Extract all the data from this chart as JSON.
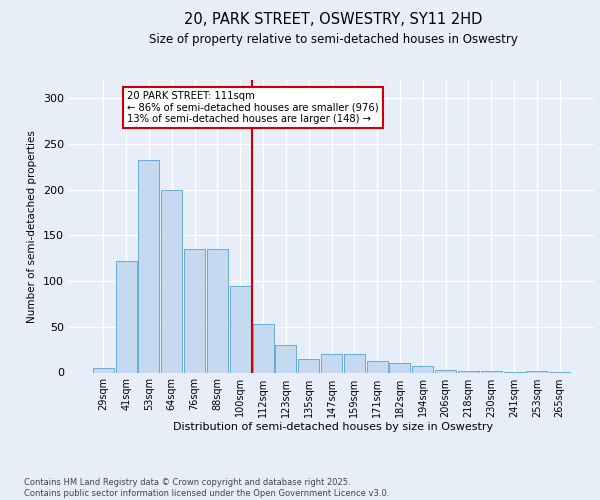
{
  "title1": "20, PARK STREET, OSWESTRY, SY11 2HD",
  "title2": "Size of property relative to semi-detached houses in Oswestry",
  "xlabel": "Distribution of semi-detached houses by size in Oswestry",
  "ylabel": "Number of semi-detached properties",
  "categories": [
    "29sqm",
    "41sqm",
    "53sqm",
    "64sqm",
    "76sqm",
    "88sqm",
    "100sqm",
    "112sqm",
    "123sqm",
    "135sqm",
    "147sqm",
    "159sqm",
    "171sqm",
    "182sqm",
    "194sqm",
    "206sqm",
    "218sqm",
    "230sqm",
    "241sqm",
    "253sqm",
    "265sqm"
  ],
  "values": [
    5,
    122,
    232,
    200,
    135,
    135,
    95,
    53,
    30,
    15,
    20,
    20,
    13,
    10,
    7,
    3,
    2,
    2,
    1,
    2,
    1
  ],
  "bar_color": "#c5d9f0",
  "bar_edge_color": "#6aaad4",
  "vline_color": "#cc0000",
  "annotation_title": "20 PARK STREET: 111sqm",
  "annotation_line1": "← 86% of semi-detached houses are smaller (976)",
  "annotation_line2": "13% of semi-detached houses are larger (148) →",
  "footer1": "Contains HM Land Registry data © Crown copyright and database right 2025.",
  "footer2": "Contains public sector information licensed under the Open Government Licence v3.0.",
  "ylim": [
    0,
    320
  ],
  "yticks": [
    0,
    50,
    100,
    150,
    200,
    250,
    300
  ],
  "bg_color": "#e8eef8",
  "grid_color": "#ffffff",
  "vline_bar_index": 7
}
